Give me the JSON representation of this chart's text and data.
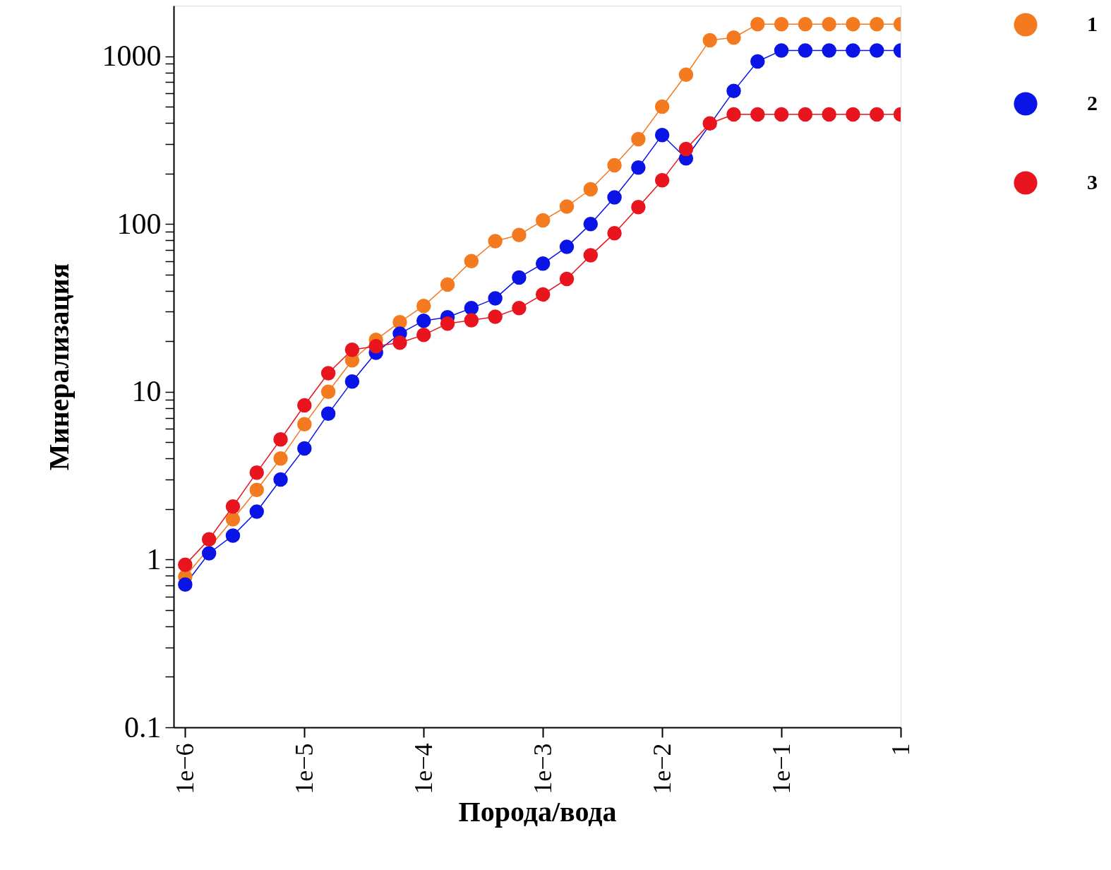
{
  "chart_data": {
    "type": "line",
    "xlabel": "Порода/вода",
    "ylabel": "Минерализация",
    "x": [
      1e-06,
      1.585e-06,
      2.512e-06,
      3.981e-06,
      6.31e-06,
      1e-05,
      1.585e-05,
      2.512e-05,
      3.981e-05,
      6.31e-05,
      0.0001,
      0.0001585,
      0.0002512,
      0.0003981,
      0.000631,
      0.001,
      0.001585,
      0.002512,
      0.003981,
      0.00631,
      0.01,
      0.01585,
      0.02512,
      0.03981,
      0.0631,
      0.1,
      0.1585,
      0.2512,
      0.3981,
      0.631,
      1
    ],
    "series": [
      {
        "name": "1",
        "color": "#f47a20",
        "values": [
          0.79,
          null,
          1.74,
          2.6,
          4.0,
          6.4,
          10,
          15.4,
          20.4,
          26,
          32.5,
          43.5,
          60,
          79,
          86,
          105,
          127,
          161,
          224,
          320,
          500,
          776,
          1245,
          1290,
          1550,
          1550,
          1550,
          1550,
          1550,
          1550,
          1550
        ]
      },
      {
        "name": "2",
        "color": "#0a14e6",
        "values": [
          0.71,
          1.09,
          1.39,
          1.93,
          3.0,
          4.6,
          7.4,
          11.5,
          17.1,
          22.2,
          26.5,
          27.8,
          31.5,
          36,
          48,
          58,
          73,
          100,
          144,
          217,
          339,
          246,
          null,
          620,
          930,
          1080,
          1080,
          1080,
          1080,
          1080,
          1080
        ]
      },
      {
        "name": "3",
        "color": "#e8141e",
        "values": [
          0.93,
          1.32,
          2.07,
          3.3,
          5.2,
          8.3,
          12.9,
          17.8,
          18.7,
          19.6,
          21.8,
          25.5,
          26.7,
          28,
          31.5,
          38,
          47,
          65,
          88,
          126,
          182,
          280,
          397,
          450,
          450,
          450,
          450,
          450,
          450,
          450,
          450
        ]
      }
    ],
    "log": "xy",
    "xlim": [
      8e-07,
      1
    ],
    "ylim": [
      0.1,
      2000
    ],
    "xticks": [
      {
        "value": 1e-06,
        "label": "1e−6"
      },
      {
        "value": 1e-05,
        "label": "1e−5"
      },
      {
        "value": 0.0001,
        "label": "1e−4"
      },
      {
        "value": 0.001,
        "label": "1e−3"
      },
      {
        "value": 0.01,
        "label": "1e−2"
      },
      {
        "value": 0.1,
        "label": "1e−1"
      },
      1
    ],
    "yticks": [
      0.1,
      {
        "value": 0.2,
        "label": null
      },
      {
        "value": 0.3,
        "label": null
      },
      {
        "value": 0.4,
        "label": null
      },
      {
        "value": 0.5,
        "label": null
      },
      {
        "value": 0.6,
        "label": null
      },
      {
        "value": 0.7,
        "label": null
      },
      {
        "value": 0.8,
        "label": null
      },
      {
        "value": 0.9,
        "label": null
      },
      1,
      {
        "value": 2,
        "label": null
      },
      {
        "value": 3,
        "label": null
      },
      {
        "value": 4,
        "label": null
      },
      {
        "value": 5,
        "label": null
      },
      {
        "value": 6,
        "label": null
      },
      {
        "value": 7,
        "label": null
      },
      {
        "value": 8,
        "label": null
      },
      {
        "value": 9,
        "label": null
      },
      10,
      {
        "value": 20,
        "label": null
      },
      {
        "value": 30,
        "label": null
      },
      {
        "value": 40,
        "label": null
      },
      {
        "value": 50,
        "label": null
      },
      {
        "value": 60,
        "label": null
      },
      {
        "value": 70,
        "label": null
      },
      {
        "value": 80,
        "label": null
      },
      {
        "value": 90,
        "label": null
      },
      100,
      {
        "value": 200,
        "label": null
      },
      {
        "value": 300,
        "label": null
      },
      {
        "value": 400,
        "label": null
      },
      {
        "value": 500,
        "label": null
      },
      {
        "value": 600,
        "label": null
      },
      {
        "value": 700,
        "label": null
      },
      {
        "value": 800,
        "label": null
      },
      {
        "value": 900,
        "label": null
      },
      1000
    ],
    "marker": "circle",
    "line_style": "solid",
    "grid": false,
    "legend": "top right"
  }
}
